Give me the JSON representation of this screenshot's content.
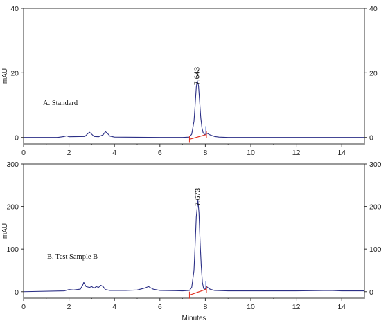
{
  "chart_data": [
    {
      "type": "line",
      "annotation": "A. Standard",
      "xlabel": "",
      "ylabel": "mAU",
      "xlim": [
        0,
        15
      ],
      "ylim": [
        -2,
        40
      ],
      "x_ticks": [
        0,
        2,
        4,
        6,
        8,
        10,
        12,
        14
      ],
      "y_ticks_left": [
        0,
        20,
        40
      ],
      "y_ticks_right": [
        0,
        20,
        40
      ],
      "peak_label": "7.643",
      "peak_label_x": 7.643,
      "peak_label_y": 19,
      "series": [
        {
          "color": "#2b2f86",
          "x": [
            0,
            1.5,
            1.8,
            1.9,
            2.0,
            2.7,
            2.8,
            2.9,
            3.0,
            3.1,
            3.3,
            3.5,
            3.6,
            3.7,
            3.8,
            4.0,
            6.0,
            7.0,
            7.3,
            7.4,
            7.5,
            7.55,
            7.6,
            7.643,
            7.7,
            7.75,
            7.8,
            7.85,
            7.9,
            7.95,
            8.0,
            8.05,
            8.1,
            8.2,
            8.4,
            8.6,
            9.0,
            12.0,
            15.0
          ],
          "y": [
            0,
            0,
            0.3,
            0.5,
            0.2,
            0.3,
            1.0,
            1.6,
            1.0,
            0.3,
            0.2,
            0.8,
            1.8,
            1.2,
            0.4,
            0.1,
            0,
            0,
            0.1,
            1.0,
            5.0,
            10.0,
            15.5,
            17.6,
            16.0,
            11.0,
            6.0,
            3.0,
            1.5,
            1.0,
            0.9,
            1.3,
            1.2,
            0.8,
            0.3,
            0.1,
            0,
            0,
            0
          ]
        }
      ],
      "baseline": {
        "color": "#e03020",
        "x": [
          7.3,
          8.05
        ],
        "y": [
          -0.6,
          0.9
        ],
        "end_marks": [
          7.3,
          8.05
        ]
      }
    },
    {
      "type": "line",
      "annotation": "B. Test Sample B",
      "xlabel": "Minutes",
      "ylabel": "mAU",
      "xlim": [
        0,
        15
      ],
      "ylim": [
        -15,
        300
      ],
      "x_ticks": [
        0,
        2,
        4,
        6,
        8,
        10,
        12,
        14
      ],
      "y_ticks_left": [
        0,
        100,
        200,
        300
      ],
      "y_ticks_right": [
        0,
        100,
        200,
        300
      ],
      "peak_label": "7.673",
      "peak_label_x": 7.673,
      "peak_label_y": 222,
      "series": [
        {
          "color": "#2b2f86",
          "x": [
            0,
            1.8,
            2.0,
            2.2,
            2.5,
            2.6,
            2.65,
            2.75,
            2.9,
            3.0,
            3.1,
            3.2,
            3.3,
            3.4,
            3.5,
            3.6,
            3.8,
            4.5,
            5.0,
            5.3,
            5.5,
            5.7,
            6.0,
            7.0,
            7.3,
            7.4,
            7.5,
            7.55,
            7.6,
            7.673,
            7.72,
            7.77,
            7.82,
            7.87,
            7.92,
            7.97,
            8.0,
            8.05,
            8.1,
            8.2,
            8.4,
            9.0,
            12.0,
            13.5,
            14.0,
            15.0
          ],
          "y": [
            0,
            2,
            5,
            4,
            6,
            15,
            22,
            12,
            10,
            12,
            8,
            12,
            10,
            15,
            12,
            5,
            3,
            3,
            4,
            8,
            12,
            6,
            3,
            2,
            3,
            10,
            50,
            110,
            175,
            215,
            185,
            115,
            60,
            22,
            8,
            5,
            8,
            12,
            10,
            6,
            3,
            2,
            2,
            3,
            2,
            2
          ]
        }
      ],
      "baseline": {
        "color": "#e03020",
        "x": [
          7.3,
          8.05
        ],
        "y": [
          -8,
          6
        ],
        "end_marks": [
          7.3,
          8.05
        ]
      }
    }
  ]
}
